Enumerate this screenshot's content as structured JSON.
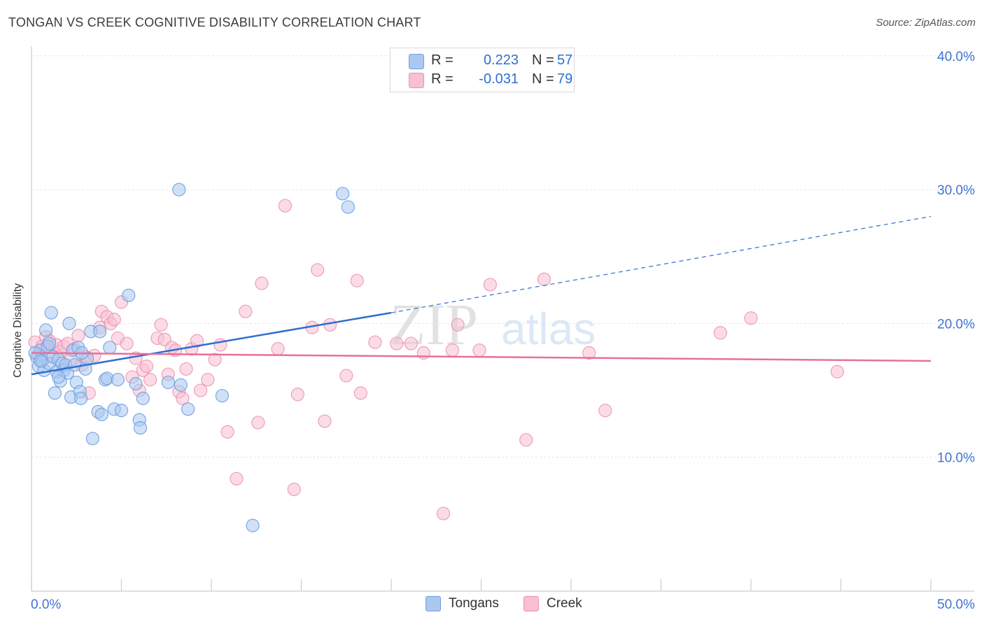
{
  "header": {
    "title": "TONGAN VS CREEK COGNITIVE DISABILITY CORRELATION CHART",
    "source": "Source: ZipAtlas.com"
  },
  "watermark": {
    "zip": "ZIP",
    "atlas": "atlas"
  },
  "legend": {
    "rows": [
      {
        "r_label": "R =",
        "r_value": "0.223",
        "n_label": "N =",
        "n_value": "57",
        "color": "#aac8f0",
        "border": "#6fa0e0"
      },
      {
        "r_label": "R =",
        "r_value": "-0.031",
        "n_label": "N =",
        "n_value": "79",
        "color": "#f8c0d2",
        "border": "#ec8fb0"
      }
    ]
  },
  "bottom_legend": {
    "tongans": "Tongans",
    "creek": "Creek"
  },
  "chart_data": {
    "type": "scatter",
    "title": "TONGAN VS CREEK COGNITIVE DISABILITY CORRELATION CHART",
    "xlabel": "",
    "ylabel": "Cognitive Disability",
    "xlim": [
      0,
      50
    ],
    "ylim": [
      0,
      42
    ],
    "x_tick_labels": [
      "0.0%",
      "50.0%"
    ],
    "y_ticks": [
      10,
      20,
      30,
      40
    ],
    "y_tick_labels": [
      "10.0%",
      "20.0%",
      "30.0%",
      "40.0%"
    ],
    "grid": true,
    "legend_position": "top-center",
    "colors": {
      "tongans": "#6fa0e0",
      "tongans_fill": "#aac8f0",
      "creek": "#ec8fb0",
      "creek_fill": "#f8c0d2",
      "tongans_line": "#2f6fd0",
      "creek_line": "#e8709a",
      "tick_label": "#3f74d0"
    },
    "series": [
      {
        "name": "Tongans",
        "trend": {
          "x0": 0,
          "y0": 16.2,
          "x1": 20,
          "y1": 20.8,
          "dashed_to_x": 50,
          "dashed_to_y": 28.0
        },
        "points": [
          [
            0.3,
            17.5
          ],
          [
            0.4,
            16.8
          ],
          [
            0.5,
            18.0
          ],
          [
            0.6,
            17.2
          ],
          [
            0.7,
            16.5
          ],
          [
            0.8,
            19.5
          ],
          [
            0.9,
            18.3
          ],
          [
            1.0,
            17.0
          ],
          [
            1.1,
            20.8
          ],
          [
            1.2,
            17.5
          ],
          [
            1.3,
            14.8
          ],
          [
            1.4,
            16.4
          ],
          [
            1.5,
            17.3
          ],
          [
            1.6,
            15.7
          ],
          [
            1.7,
            17.0
          ],
          [
            1.8,
            16.5
          ],
          [
            1.9,
            16.9
          ],
          [
            2.0,
            16.3
          ],
          [
            2.1,
            20.0
          ],
          [
            2.2,
            14.5
          ],
          [
            2.3,
            18.0
          ],
          [
            2.4,
            16.9
          ],
          [
            2.5,
            15.6
          ],
          [
            2.6,
            18.2
          ],
          [
            2.7,
            14.9
          ],
          [
            2.75,
            14.4
          ],
          [
            3.0,
            16.6
          ],
          [
            3.1,
            17.4
          ],
          [
            3.3,
            19.4
          ],
          [
            3.4,
            11.4
          ],
          [
            3.7,
            13.4
          ],
          [
            3.8,
            19.4
          ],
          [
            3.9,
            13.2
          ],
          [
            4.1,
            15.8
          ],
          [
            4.2,
            15.9
          ],
          [
            4.35,
            18.2
          ],
          [
            4.6,
            13.6
          ],
          [
            4.8,
            15.8
          ],
          [
            5.0,
            13.5
          ],
          [
            5.4,
            22.1
          ],
          [
            5.8,
            15.5
          ],
          [
            6.0,
            12.8
          ],
          [
            6.05,
            12.2
          ],
          [
            6.2,
            14.4
          ],
          [
            7.6,
            15.6
          ],
          [
            8.2,
            30.0
          ],
          [
            8.3,
            15.4
          ],
          [
            8.7,
            13.6
          ],
          [
            10.6,
            14.6
          ],
          [
            12.3,
            4.9
          ],
          [
            17.3,
            29.7
          ],
          [
            17.6,
            28.7
          ],
          [
            0.2,
            17.8
          ],
          [
            0.5,
            17.2
          ],
          [
            1.0,
            18.5
          ],
          [
            2.8,
            17.8
          ],
          [
            1.5,
            16.0
          ]
        ]
      },
      {
        "name": "Creek",
        "trend": {
          "x0": 0,
          "y0": 17.8,
          "x1": 50,
          "y1": 17.2
        },
        "points": [
          [
            0.2,
            18.6
          ],
          [
            0.4,
            17.7
          ],
          [
            0.6,
            18.3
          ],
          [
            0.8,
            19.0
          ],
          [
            0.9,
            18.2
          ],
          [
            1.0,
            18.7
          ],
          [
            1.2,
            17.6
          ],
          [
            1.4,
            18.4
          ],
          [
            1.6,
            17.9
          ],
          [
            1.8,
            18.3
          ],
          [
            2.0,
            18.5
          ],
          [
            2.2,
            17.3
          ],
          [
            2.4,
            18.1
          ],
          [
            2.6,
            19.1
          ],
          [
            2.8,
            16.9
          ],
          [
            3.0,
            17.5
          ],
          [
            3.2,
            14.8
          ],
          [
            3.5,
            17.6
          ],
          [
            3.8,
            19.7
          ],
          [
            3.9,
            20.9
          ],
          [
            4.2,
            20.5
          ],
          [
            4.4,
            20.0
          ],
          [
            4.6,
            20.3
          ],
          [
            4.8,
            18.9
          ],
          [
            5.0,
            21.6
          ],
          [
            5.3,
            18.5
          ],
          [
            5.6,
            16.0
          ],
          [
            5.8,
            17.4
          ],
          [
            6.0,
            15.0
          ],
          [
            6.2,
            16.5
          ],
          [
            6.4,
            16.8
          ],
          [
            6.6,
            15.8
          ],
          [
            7.0,
            18.9
          ],
          [
            7.2,
            19.9
          ],
          [
            7.4,
            18.8
          ],
          [
            7.6,
            16.2
          ],
          [
            7.8,
            18.2
          ],
          [
            8.0,
            18.0
          ],
          [
            8.2,
            14.9
          ],
          [
            8.4,
            14.4
          ],
          [
            8.6,
            16.6
          ],
          [
            8.9,
            18.1
          ],
          [
            9.2,
            18.7
          ],
          [
            9.4,
            15.0
          ],
          [
            9.8,
            15.8
          ],
          [
            10.2,
            17.3
          ],
          [
            10.5,
            18.4
          ],
          [
            10.9,
            11.9
          ],
          [
            11.4,
            8.4
          ],
          [
            11.9,
            20.9
          ],
          [
            12.6,
            12.6
          ],
          [
            12.8,
            23.0
          ],
          [
            13.7,
            18.1
          ],
          [
            14.1,
            28.8
          ],
          [
            14.6,
            7.6
          ],
          [
            14.8,
            14.7
          ],
          [
            15.6,
            19.7
          ],
          [
            15.9,
            24.0
          ],
          [
            16.3,
            12.7
          ],
          [
            16.6,
            19.9
          ],
          [
            17.5,
            16.1
          ],
          [
            18.1,
            23.2
          ],
          [
            18.3,
            14.8
          ],
          [
            19.1,
            18.6
          ],
          [
            20.3,
            18.5
          ],
          [
            21.1,
            18.5
          ],
          [
            21.8,
            17.8
          ],
          [
            22.9,
            5.8
          ],
          [
            23.4,
            18.0
          ],
          [
            23.7,
            19.9
          ],
          [
            24.9,
            18.0
          ],
          [
            25.5,
            22.9
          ],
          [
            27.5,
            11.3
          ],
          [
            28.5,
            23.3
          ],
          [
            31.0,
            17.8
          ],
          [
            31.9,
            13.5
          ],
          [
            38.3,
            19.3
          ],
          [
            40.0,
            20.4
          ],
          [
            44.8,
            16.4
          ]
        ]
      }
    ]
  }
}
